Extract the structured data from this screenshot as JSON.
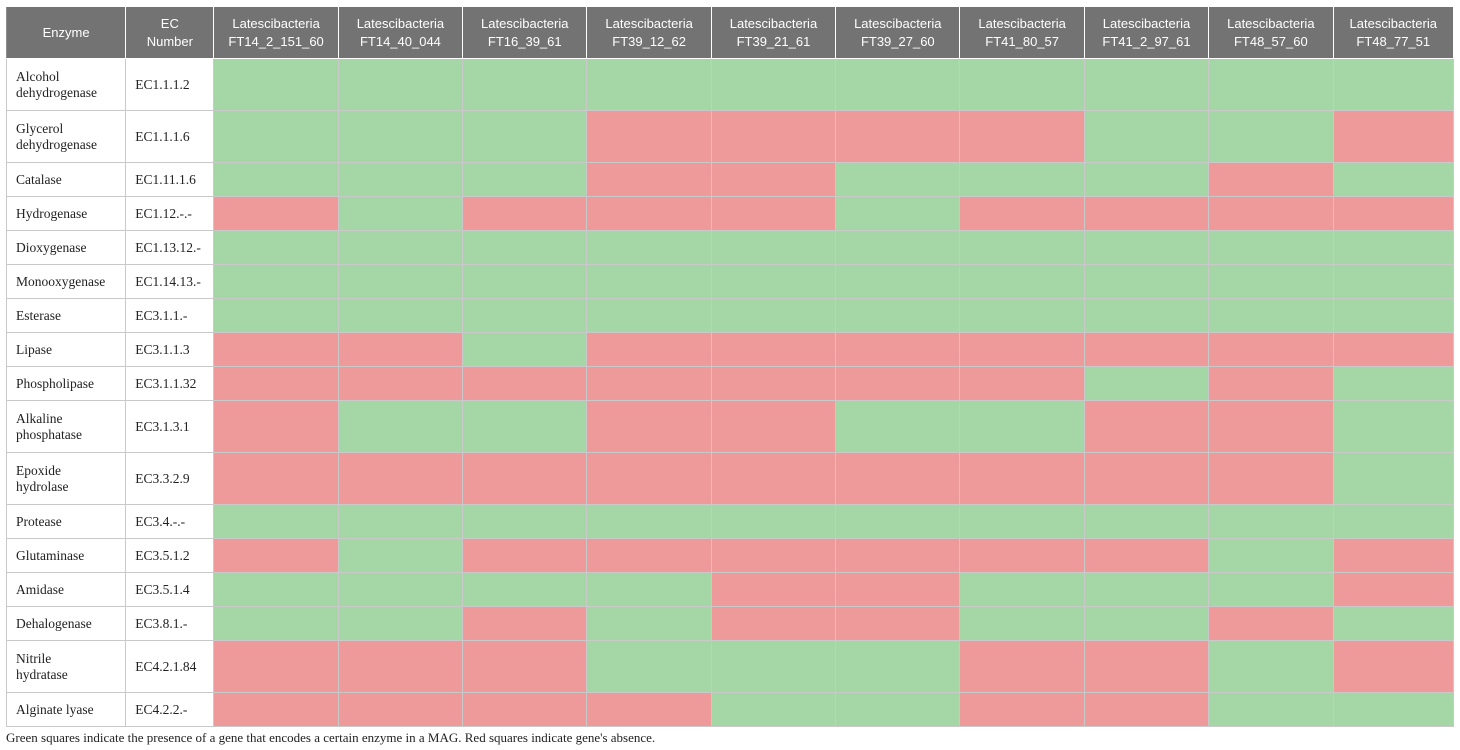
{
  "chart_data": {
    "type": "heatmap",
    "columns": {
      "enzyme": "Enzyme",
      "ec": "EC\nNumber"
    },
    "species": [
      "Latescibacteria\nFT14_2_151_60",
      "Latescibacteria\nFT14_40_044",
      "Latescibacteria\nFT16_39_61",
      "Latescibacteria\nFT39_12_62",
      "Latescibacteria\nFT39_21_61",
      "Latescibacteria\nFT39_27_60",
      "Latescibacteria\nFT41_80_57",
      "Latescibacteria\nFT41_2_97_61",
      "Latescibacteria\nFT48_57_60",
      "Latescibacteria\nFT48_77_51"
    ],
    "rows": [
      {
        "enzyme": "Alcohol\ndehydrogenase",
        "ec": "EC1.1.1.2",
        "values": [
          1,
          1,
          1,
          1,
          1,
          1,
          1,
          1,
          1,
          1
        ]
      },
      {
        "enzyme": "Glycerol\ndehydrogenase",
        "ec": "EC1.1.1.6",
        "values": [
          1,
          1,
          1,
          0,
          0,
          0,
          0,
          1,
          1,
          0
        ]
      },
      {
        "enzyme": "Catalase",
        "ec": "EC1.11.1.6",
        "values": [
          1,
          1,
          1,
          0,
          0,
          1,
          1,
          1,
          0,
          1
        ]
      },
      {
        "enzyme": "Hydrogenase",
        "ec": "EC1.12.-.-",
        "values": [
          0,
          1,
          0,
          0,
          0,
          1,
          0,
          0,
          0,
          0
        ]
      },
      {
        "enzyme": "Dioxygenase",
        "ec": "EC1.13.12.-",
        "values": [
          1,
          1,
          1,
          1,
          1,
          1,
          1,
          1,
          1,
          1
        ]
      },
      {
        "enzyme": "Monooxygenase",
        "ec": "EC1.14.13.-",
        "values": [
          1,
          1,
          1,
          1,
          1,
          1,
          1,
          1,
          1,
          1
        ]
      },
      {
        "enzyme": "Esterase",
        "ec": "EC3.1.1.-",
        "values": [
          1,
          1,
          1,
          1,
          1,
          1,
          1,
          1,
          1,
          1
        ]
      },
      {
        "enzyme": "Lipase",
        "ec": "EC3.1.1.3",
        "values": [
          0,
          0,
          1,
          0,
          0,
          0,
          0,
          0,
          0,
          0
        ]
      },
      {
        "enzyme": "Phospholipase",
        "ec": "EC3.1.1.32",
        "values": [
          0,
          0,
          0,
          0,
          0,
          0,
          0,
          1,
          0,
          1
        ]
      },
      {
        "enzyme": "Alkaline\nphosphatase",
        "ec": "EC3.1.3.1",
        "values": [
          0,
          1,
          1,
          0,
          0,
          1,
          1,
          0,
          0,
          1
        ]
      },
      {
        "enzyme": "Epoxide\nhydrolase",
        "ec": "EC3.3.2.9",
        "values": [
          0,
          0,
          0,
          0,
          0,
          0,
          0,
          0,
          0,
          1
        ]
      },
      {
        "enzyme": "Protease",
        "ec": "EC3.4.-.-",
        "values": [
          1,
          1,
          1,
          1,
          1,
          1,
          1,
          1,
          1,
          1
        ]
      },
      {
        "enzyme": "Glutaminase",
        "ec": "EC3.5.1.2",
        "values": [
          0,
          1,
          0,
          0,
          0,
          0,
          0,
          0,
          1,
          0
        ]
      },
      {
        "enzyme": "Amidase",
        "ec": "EC3.5.1.4",
        "values": [
          1,
          1,
          1,
          1,
          0,
          0,
          1,
          1,
          1,
          0
        ]
      },
      {
        "enzyme": "Dehalogenase",
        "ec": "EC3.8.1.-",
        "values": [
          1,
          1,
          0,
          1,
          0,
          0,
          1,
          1,
          0,
          1
        ]
      },
      {
        "enzyme": "Nitrile\nhydratase",
        "ec": "EC4.2.1.84",
        "values": [
          0,
          0,
          0,
          1,
          1,
          1,
          0,
          0,
          1,
          0
        ]
      },
      {
        "enzyme": "Alginate lyase",
        "ec": "EC4.2.2.-",
        "values": [
          0,
          0,
          0,
          0,
          1,
          1,
          0,
          0,
          1,
          1
        ]
      }
    ],
    "colors": {
      "present": "#a4d6a6",
      "absent": "#ee9a9a",
      "header_bg": "#737373"
    },
    "caption": "Green squares indicate the presence of a gene that encodes a certain enzyme in a MAG. Red squares indicate gene's absence."
  }
}
